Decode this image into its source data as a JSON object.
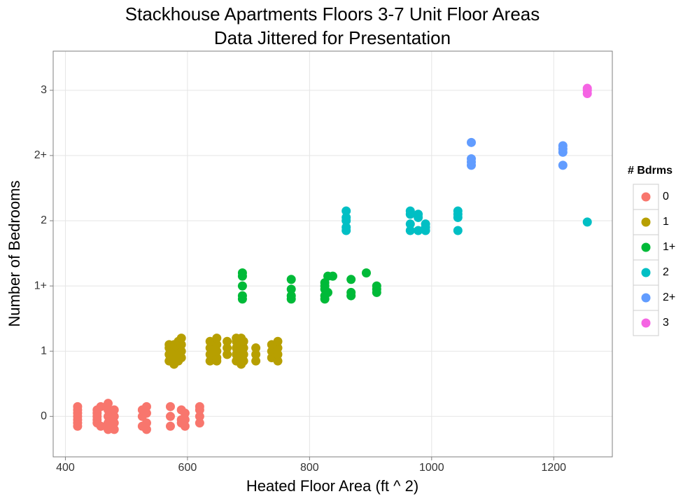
{
  "chart_data": {
    "type": "scatter",
    "title": "Stackhouse Apartments Floors 3-7 Unit Floor Areas",
    "subtitle": "Data Jittered for Presentation",
    "x_label": "Heated Floor Area (ft ^ 2)",
    "y_label": "Number of Bedrooms",
    "legend_title": "# Bdrms",
    "legend_position": "right",
    "grid": true,
    "xlim": [
      380,
      1296
    ],
    "ylim": [
      -0.62,
      5.6
    ],
    "xticks": [
      400,
      600,
      800,
      1000,
      1200
    ],
    "yticks": [
      0,
      1,
      {
        "value": 2,
        "label": "1+"
      },
      {
        "value": 3,
        "label": "2"
      },
      {
        "value": 4,
        "label": "2+"
      },
      {
        "value": 5,
        "label": "3"
      }
    ],
    "series": [
      {
        "name": "0",
        "color": "#F8766D",
        "x": [
          420,
          420,
          420,
          420,
          420,
          420,
          420,
          452,
          452,
          452,
          452,
          452,
          458,
          458,
          470,
          470,
          470,
          470,
          470,
          480,
          480,
          480,
          480,
          526,
          526,
          526,
          533,
          533,
          533,
          533,
          572,
          572,
          572,
          590,
          590,
          590,
          596,
          596,
          596,
          620,
          620,
          620,
          620
        ],
        "values": [
          -0.15,
          -0.1,
          -0.05,
          0,
          0.05,
          0.1,
          0.15,
          -0.1,
          0,
          0.1,
          0.05,
          -0.05,
          0.15,
          -0.15,
          -0.2,
          -0.1,
          0,
          0.1,
          0.2,
          -0.2,
          -0.1,
          0,
          0.1,
          -0.15,
          0,
          0.1,
          -0.2,
          -0.1,
          0.05,
          0.15,
          -0.15,
          0,
          0.15,
          -0.1,
          0.1,
          -0.05,
          -0.15,
          -0.05,
          0.05,
          -0.1,
          0,
          0.1,
          0.15
        ]
      },
      {
        "name": "1",
        "color": "#B79F00",
        "x": [
          570,
          570,
          570,
          570,
          578,
          578,
          578,
          578,
          585,
          585,
          585,
          585,
          590,
          590,
          590,
          590,
          637,
          637,
          637,
          637,
          648,
          648,
          648,
          648,
          648,
          665,
          665,
          665,
          680,
          680,
          680,
          680,
          680,
          688,
          688,
          688,
          688,
          688,
          692,
          692,
          692,
          692,
          712,
          712,
          712,
          738,
          738,
          738,
          748,
          748,
          748,
          748
        ],
        "values": [
          0.85,
          0.95,
          1.05,
          1.1,
          0.8,
          0.9,
          1.0,
          1.1,
          0.85,
          0.95,
          1.05,
          1.15,
          0.9,
          1.0,
          1.1,
          1.2,
          0.85,
          0.95,
          1.05,
          1.15,
          0.85,
          0.9,
          1.0,
          1.1,
          1.2,
          0.95,
          1.05,
          1.15,
          0.85,
          0.95,
          1.05,
          1.15,
          1.2,
          0.8,
          0.9,
          1.0,
          1.1,
          1.2,
          0.85,
          0.95,
          1.05,
          1.15,
          0.85,
          0.95,
          1.05,
          0.9,
          1.0,
          1.1,
          0.85,
          0.95,
          1.05,
          1.15
        ]
      },
      {
        "name": "1+",
        "color": "#00BA38",
        "x": [
          690,
          690,
          690,
          690,
          690,
          770,
          770,
          770,
          770,
          825,
          825,
          825,
          825,
          825,
          830,
          830,
          838,
          868,
          868,
          868,
          893,
          910,
          910,
          910
        ],
        "values": [
          1.8,
          1.85,
          2.0,
          2.15,
          2.2,
          1.8,
          1.85,
          1.95,
          2.1,
          1.8,
          1.85,
          1.95,
          2.0,
          2.05,
          1.9,
          2.15,
          2.15,
          1.85,
          1.9,
          2.1,
          2.2,
          1.9,
          1.95,
          2.0
        ]
      },
      {
        "name": "2",
        "color": "#00BFC4",
        "x": [
          860,
          860,
          860,
          860,
          860,
          965,
          965,
          965,
          965,
          978,
          978,
          978,
          990,
          990,
          990,
          1043,
          1043,
          1043,
          1043,
          1255
        ],
        "values": [
          2.85,
          2.9,
          3.0,
          3.05,
          3.15,
          2.85,
          2.95,
          3.1,
          3.15,
          2.85,
          3.05,
          3.1,
          2.85,
          2.9,
          2.95,
          2.85,
          3.05,
          3.1,
          3.15,
          2.98
        ]
      },
      {
        "name": "2+",
        "color": "#619CFF",
        "x": [
          1065,
          1065,
          1065,
          1065,
          1215,
          1215,
          1215,
          1215
        ],
        "values": [
          3.85,
          3.9,
          3.95,
          4.2,
          3.85,
          4.05,
          4.1,
          4.15
        ]
      },
      {
        "name": "3",
        "color": "#F564E3",
        "x": [
          1255,
          1255,
          1255
        ],
        "values": [
          4.95,
          5.0,
          5.03
        ]
      }
    ]
  }
}
